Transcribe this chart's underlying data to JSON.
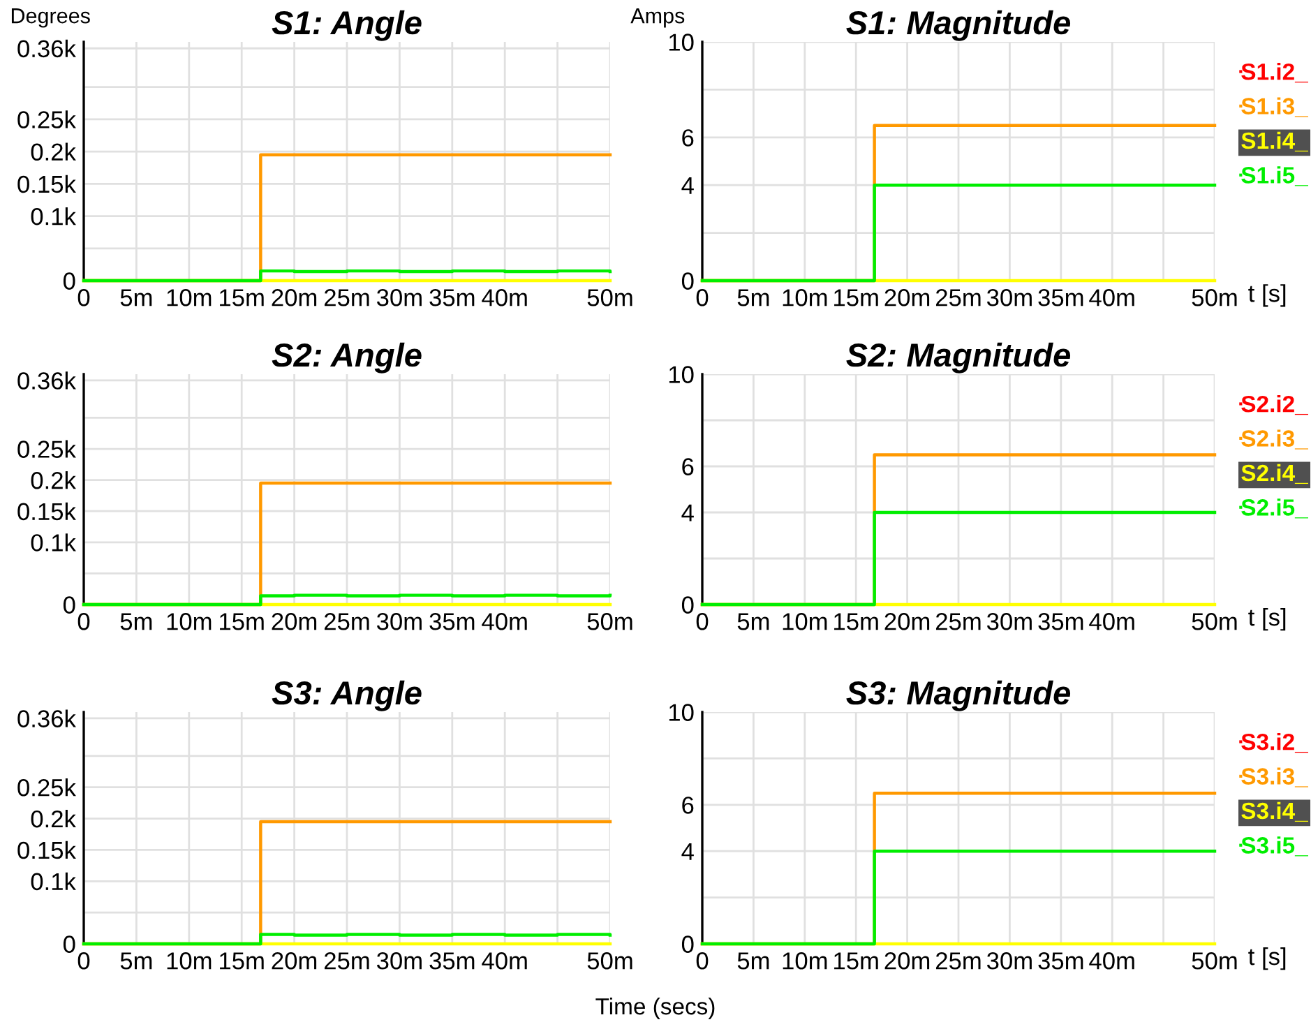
{
  "chart_data": [
    {
      "type": "step",
      "title": "S1: Angle",
      "ylabel": "Degrees",
      "x": [
        0,
        16.8,
        20,
        25,
        30,
        35,
        40,
        45,
        50
      ],
      "series": [
        {
          "color": "#ff0000",
          "values": [
            null,
            null,
            null,
            null,
            null,
            null,
            null,
            null,
            null
          ]
        },
        {
          "color": "#ff9900",
          "values": [
            0,
            195,
            195,
            195,
            195,
            195,
            195,
            195,
            195
          ]
        },
        {
          "color": "#ffff00",
          "values": [
            0,
            0,
            0,
            0,
            0,
            0,
            0,
            0,
            0
          ]
        },
        {
          "color": "#00ee00",
          "values": [
            0,
            15,
            14,
            15,
            14,
            15,
            14,
            15,
            14
          ]
        }
      ],
      "xlim": [
        0,
        50
      ],
      "xticks": [
        0,
        {
          "value": 5,
          "label": "5m"
        },
        {
          "value": 10,
          "label": "10m"
        },
        {
          "value": 15,
          "label": "15m"
        },
        {
          "value": 20,
          "label": "20m"
        },
        {
          "value": 25,
          "label": "25m"
        },
        {
          "value": 30,
          "label": "30m"
        },
        {
          "value": 35,
          "label": "35m"
        },
        {
          "value": 40,
          "label": "40m"
        },
        {
          "value": 45,
          "label": null
        },
        {
          "value": 50,
          "label": "50m"
        }
      ],
      "ylim": [
        0,
        370
      ],
      "yticks": [
        0,
        {
          "value": 50,
          "label": null
        },
        {
          "value": 100,
          "label": "0.1k"
        },
        {
          "value": 150,
          "label": "0.15k"
        },
        {
          "value": 200,
          "label": "0.2k"
        },
        {
          "value": 250,
          "label": "0.25k"
        },
        {
          "value": 300,
          "label": null
        },
        {
          "value": 360,
          "label": "0.36k"
        }
      ],
      "grid": true,
      "legend": false
    },
    {
      "type": "step",
      "title": "S1: Magnitude",
      "ylabel": "Amps",
      "xlabel": "t [s]",
      "x": [
        0,
        16.8,
        20,
        25,
        30,
        35,
        40,
        45,
        50
      ],
      "series": [
        {
          "name": "S1.i2_",
          "color": "#ff0000",
          "values": [
            null,
            null,
            null,
            null,
            null,
            null,
            null,
            null,
            null
          ]
        },
        {
          "name": "S1.i3_",
          "color": "#ff9900",
          "values": [
            0,
            6.5,
            6.5,
            6.5,
            6.5,
            6.5,
            6.5,
            6.5,
            6.5
          ]
        },
        {
          "name": "S1.i4_",
          "color": "#ffff00",
          "values": [
            0,
            0,
            0,
            0,
            0,
            0,
            0,
            0,
            0
          ]
        },
        {
          "name": "S1.i5_",
          "color": "#00ee00",
          "values": [
            0,
            4.0,
            4.0,
            4.0,
            4.0,
            4.0,
            4.0,
            4.0,
            4.0
          ]
        }
      ],
      "xlim": [
        0,
        50
      ],
      "xticks": [
        0,
        {
          "value": 5,
          "label": "5m"
        },
        {
          "value": 10,
          "label": "10m"
        },
        {
          "value": 15,
          "label": "15m"
        },
        {
          "value": 20,
          "label": "20m"
        },
        {
          "value": 25,
          "label": "25m"
        },
        {
          "value": 30,
          "label": "30m"
        },
        {
          "value": 35,
          "label": "35m"
        },
        {
          "value": 40,
          "label": "40m"
        },
        {
          "value": 45,
          "label": null
        },
        {
          "value": 50,
          "label": "50m"
        }
      ],
      "ylim": [
        0,
        10
      ],
      "yticks": [
        0,
        {
          "value": 2,
          "label": null
        },
        4,
        6,
        {
          "value": 8,
          "label": null
        },
        10
      ],
      "grid": true,
      "legend": "right"
    },
    {
      "type": "step",
      "title": "S2: Angle",
      "x": [
        0,
        16.8,
        20,
        25,
        30,
        35,
        40,
        45,
        50
      ],
      "series": [
        {
          "color": "#ff0000",
          "values": [
            null,
            null,
            null,
            null,
            null,
            null,
            null,
            null,
            null
          ]
        },
        {
          "color": "#ff9900",
          "values": [
            0,
            195,
            195,
            195,
            195,
            195,
            195,
            195,
            195
          ]
        },
        {
          "color": "#ffff00",
          "values": [
            0,
            0,
            0,
            0,
            0,
            0,
            0,
            0,
            0
          ]
        },
        {
          "color": "#00ee00",
          "values": [
            0,
            14,
            15,
            14,
            15,
            14,
            15,
            14,
            15
          ]
        }
      ],
      "xlim": [
        0,
        50
      ],
      "xticks": [
        0,
        {
          "value": 5,
          "label": "5m"
        },
        {
          "value": 10,
          "label": "10m"
        },
        {
          "value": 15,
          "label": "15m"
        },
        {
          "value": 20,
          "label": "20m"
        },
        {
          "value": 25,
          "label": "25m"
        },
        {
          "value": 30,
          "label": "30m"
        },
        {
          "value": 35,
          "label": "35m"
        },
        {
          "value": 40,
          "label": "40m"
        },
        {
          "value": 45,
          "label": null
        },
        {
          "value": 50,
          "label": "50m"
        }
      ],
      "ylim": [
        0,
        370
      ],
      "yticks": [
        0,
        {
          "value": 50,
          "label": null
        },
        {
          "value": 100,
          "label": "0.1k"
        },
        {
          "value": 150,
          "label": "0.15k"
        },
        {
          "value": 200,
          "label": "0.2k"
        },
        {
          "value": 250,
          "label": "0.25k"
        },
        {
          "value": 300,
          "label": null
        },
        {
          "value": 360,
          "label": "0.36k"
        }
      ],
      "grid": true,
      "legend": false
    },
    {
      "type": "step",
      "title": "S2: Magnitude",
      "xlabel": "t [s]",
      "x": [
        0,
        16.8,
        20,
        25,
        30,
        35,
        40,
        45,
        50
      ],
      "series": [
        {
          "name": "S2.i2_",
          "color": "#ff0000",
          "values": [
            null,
            null,
            null,
            null,
            null,
            null,
            null,
            null,
            null
          ]
        },
        {
          "name": "S2.i3_",
          "color": "#ff9900",
          "values": [
            0,
            6.5,
            6.5,
            6.5,
            6.5,
            6.5,
            6.5,
            6.5,
            6.5
          ]
        },
        {
          "name": "S2.i4_",
          "color": "#ffff00",
          "values": [
            0,
            0,
            0,
            0,
            0,
            0,
            0,
            0,
            0
          ]
        },
        {
          "name": "S2.i5_",
          "color": "#00ee00",
          "values": [
            0,
            4.0,
            4.0,
            4.0,
            4.0,
            4.0,
            4.0,
            4.0,
            4.0
          ]
        }
      ],
      "xlim": [
        0,
        50
      ],
      "xticks": [
        0,
        {
          "value": 5,
          "label": "5m"
        },
        {
          "value": 10,
          "label": "10m"
        },
        {
          "value": 15,
          "label": "15m"
        },
        {
          "value": 20,
          "label": "20m"
        },
        {
          "value": 25,
          "label": "25m"
        },
        {
          "value": 30,
          "label": "30m"
        },
        {
          "value": 35,
          "label": "35m"
        },
        {
          "value": 40,
          "label": "40m"
        },
        {
          "value": 45,
          "label": null
        },
        {
          "value": 50,
          "label": "50m"
        }
      ],
      "ylim": [
        0,
        10
      ],
      "yticks": [
        0,
        {
          "value": 2,
          "label": null
        },
        4,
        6,
        {
          "value": 8,
          "label": null
        },
        10
      ],
      "grid": true,
      "legend": "right"
    },
    {
      "type": "step",
      "title": "S3: Angle",
      "x": [
        0,
        16.8,
        20,
        25,
        30,
        35,
        40,
        45,
        50
      ],
      "series": [
        {
          "color": "#ff0000",
          "values": [
            null,
            null,
            null,
            null,
            null,
            null,
            null,
            null,
            null
          ]
        },
        {
          "color": "#ff9900",
          "values": [
            0,
            195,
            195,
            195,
            195,
            195,
            195,
            195,
            195
          ]
        },
        {
          "color": "#ffff00",
          "values": [
            0,
            0,
            0,
            0,
            0,
            0,
            0,
            0,
            0
          ]
        },
        {
          "color": "#00ee00",
          "values": [
            0,
            15,
            14,
            15,
            14,
            15,
            14,
            15,
            14
          ]
        }
      ],
      "xlim": [
        0,
        50
      ],
      "xticks": [
        0,
        {
          "value": 5,
          "label": "5m"
        },
        {
          "value": 10,
          "label": "10m"
        },
        {
          "value": 15,
          "label": "15m"
        },
        {
          "value": 20,
          "label": "20m"
        },
        {
          "value": 25,
          "label": "25m"
        },
        {
          "value": 30,
          "label": "30m"
        },
        {
          "value": 35,
          "label": "35m"
        },
        {
          "value": 40,
          "label": "40m"
        },
        {
          "value": 45,
          "label": null
        },
        {
          "value": 50,
          "label": "50m"
        }
      ],
      "ylim": [
        0,
        370
      ],
      "yticks": [
        0,
        {
          "value": 50,
          "label": null
        },
        {
          "value": 100,
          "label": "0.1k"
        },
        {
          "value": 150,
          "label": "0.15k"
        },
        {
          "value": 200,
          "label": "0.2k"
        },
        {
          "value": 250,
          "label": "0.25k"
        },
        {
          "value": 300,
          "label": null
        },
        {
          "value": 360,
          "label": "0.36k"
        }
      ],
      "grid": true,
      "legend": false,
      "annotations": [
        "Time (secs)"
      ]
    },
    {
      "type": "step",
      "title": "S3: Magnitude",
      "xlabel": "t [s]",
      "x": [
        0,
        16.8,
        20,
        25,
        30,
        35,
        40,
        45,
        50
      ],
      "series": [
        {
          "name": "S3.i2_",
          "color": "#ff0000",
          "values": [
            null,
            null,
            null,
            null,
            null,
            null,
            null,
            null,
            null
          ]
        },
        {
          "name": "S3.i3_",
          "color": "#ff9900",
          "values": [
            0,
            6.5,
            6.5,
            6.5,
            6.5,
            6.5,
            6.5,
            6.5,
            6.5
          ]
        },
        {
          "name": "S3.i4_",
          "color": "#ffff00",
          "values": [
            0,
            0,
            0,
            0,
            0,
            0,
            0,
            0,
            0
          ]
        },
        {
          "name": "S3.i5_",
          "color": "#00ee00",
          "values": [
            0,
            4.0,
            4.0,
            4.0,
            4.0,
            4.0,
            4.0,
            4.0,
            4.0
          ]
        }
      ],
      "xlim": [
        0,
        50
      ],
      "xticks": [
        0,
        {
          "value": 5,
          "label": "5m"
        },
        {
          "value": 10,
          "label": "10m"
        },
        {
          "value": 15,
          "label": "15m"
        },
        {
          "value": 20,
          "label": "20m"
        },
        {
          "value": 25,
          "label": "25m"
        },
        {
          "value": 30,
          "label": "30m"
        },
        {
          "value": 35,
          "label": "35m"
        },
        {
          "value": 40,
          "label": "40m"
        },
        {
          "value": 45,
          "label": null
        },
        {
          "value": 50,
          "label": "50m"
        }
      ],
      "ylim": [
        0,
        10
      ],
      "yticks": [
        0,
        {
          "value": 2,
          "label": null
        },
        4,
        6,
        {
          "value": 8,
          "label": null
        },
        10
      ],
      "grid": true,
      "legend": "right"
    }
  ]
}
